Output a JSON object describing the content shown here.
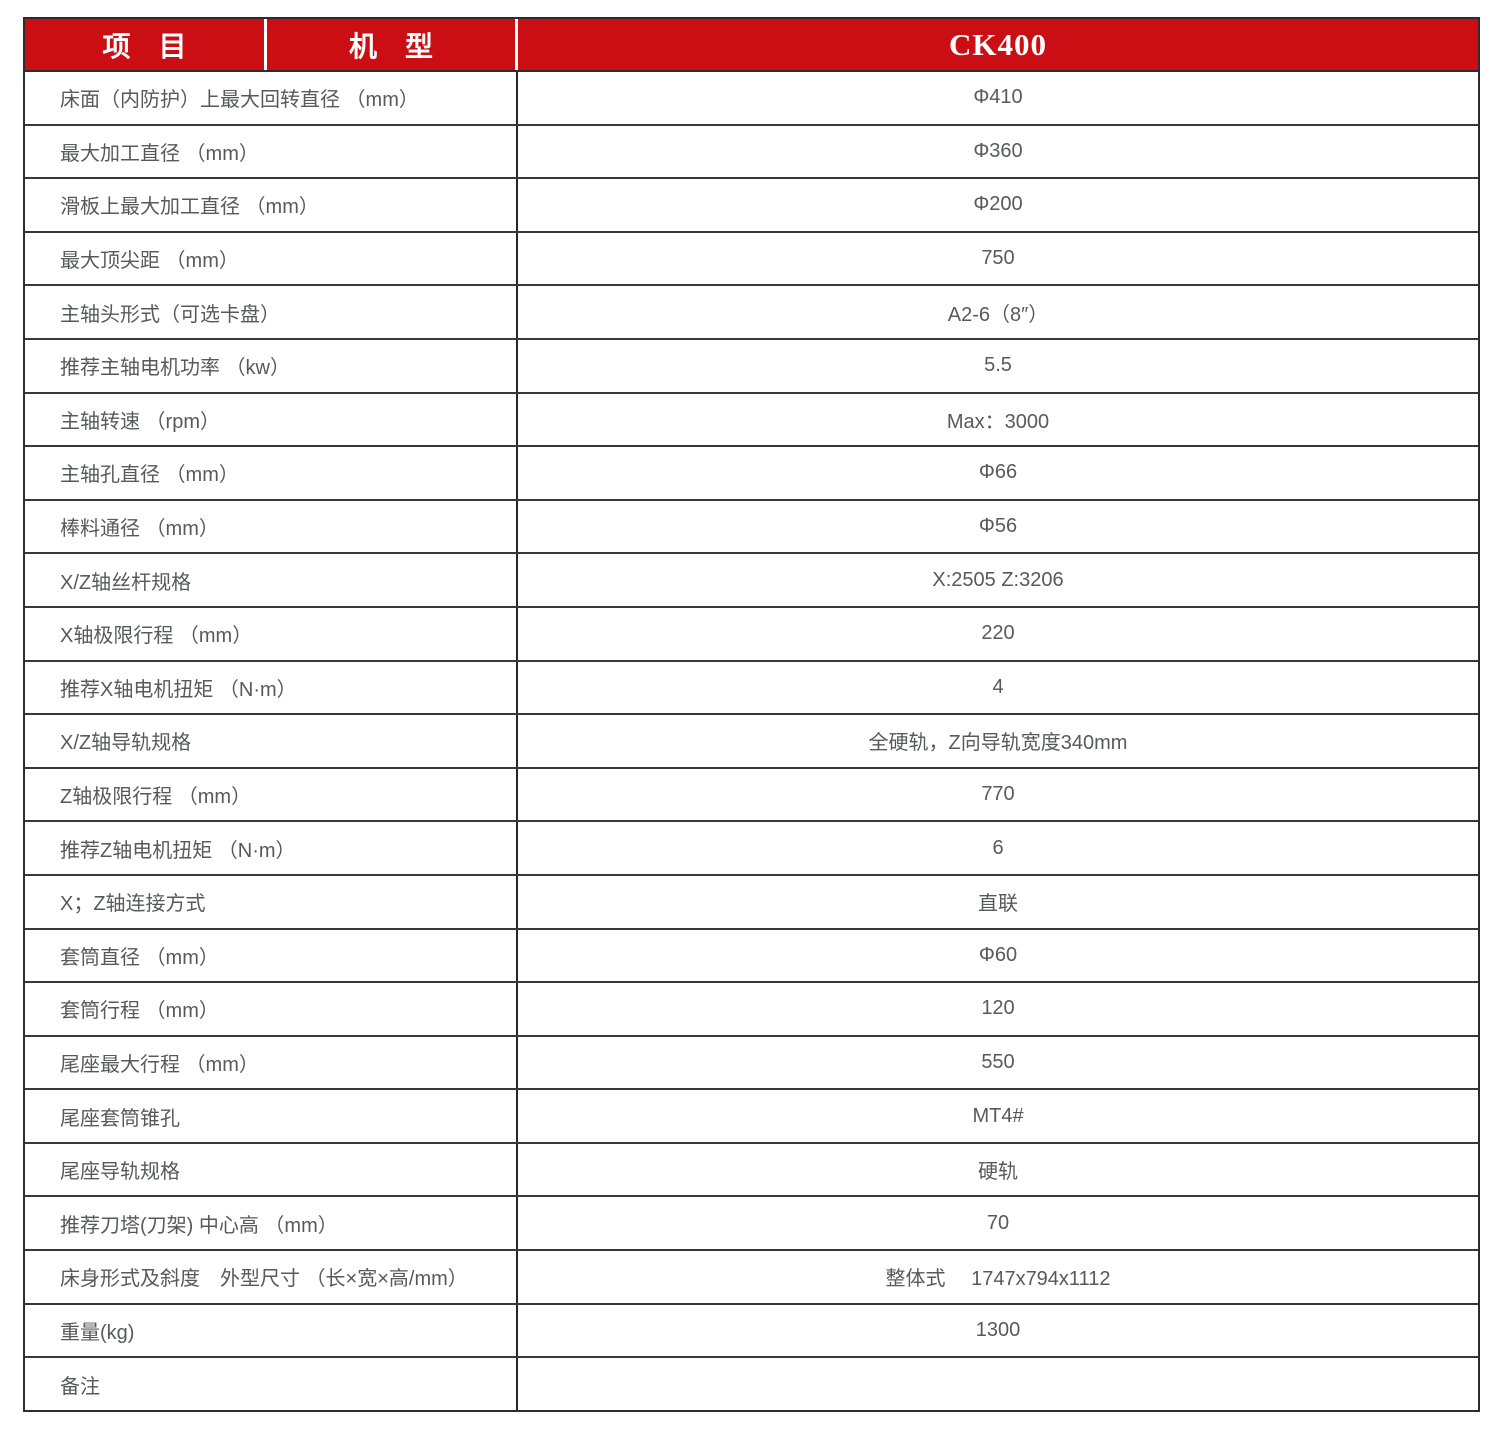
{
  "colors": {
    "header_red": "#cb0e13",
    "header_text": "#ffffff",
    "body_text": "#58595b",
    "grid_line": "#383838"
  },
  "header": {
    "col_item": "项　目",
    "col_model": "机　型",
    "col_value": "CK400"
  },
  "rows": [
    {
      "label": "床面（内防护）上最大回转直径 （mm）",
      "value": "Φ410"
    },
    {
      "label": "最大加工直径 （mm）",
      "value": "Φ360"
    },
    {
      "label": "滑板上最大加工直径 （mm）",
      "value": "Φ200"
    },
    {
      "label": "最大顶尖距 （mm）",
      "value": "750"
    },
    {
      "label": "主轴头形式（可选卡盘）",
      "value": "A2-6（8″）"
    },
    {
      "label": "推荐主轴电机功率 （kw）",
      "value": "5.5"
    },
    {
      "label": "主轴转速 （rpm）",
      "value": "Max：3000"
    },
    {
      "label": "主轴孔直径 （mm）",
      "value": "Φ66"
    },
    {
      "label": "棒料通径 （mm）",
      "value": "Φ56"
    },
    {
      "label": "X/Z轴丝杆规格",
      "value": "X:2505 Z:3206"
    },
    {
      "label": "X轴极限行程 （mm）",
      "value": "220"
    },
    {
      "label": "推荐X轴电机扭矩 （N·m）",
      "value": "4"
    },
    {
      "label": "X/Z轴导轨规格",
      "value": "全硬轨，Z向导轨宽度340mm"
    },
    {
      "label": "Z轴极限行程 （mm）",
      "value": "770"
    },
    {
      "label": "推荐Z轴电机扭矩 （N·m）",
      "value": "6"
    },
    {
      "label": "X；Z轴连接方式",
      "value": "直联"
    },
    {
      "label": "套筒直径 （mm）",
      "value": "Φ60"
    },
    {
      "label": "套筒行程 （mm）",
      "value": "120"
    },
    {
      "label": "尾座最大行程 （mm）",
      "value": "550"
    },
    {
      "label": "尾座套筒锥孔",
      "value": "MT4#"
    },
    {
      "label": "尾座导轨规格",
      "value": "硬轨"
    },
    {
      "label": "推荐刀塔(刀架) 中心高 （mm）",
      "value": "70"
    },
    {
      "label": "床身形式及斜度　外型尺寸 （长×宽×高/mm）",
      "value": "整体式　 1747x794x1112"
    },
    {
      "label": "重量(kg)",
      "value": "1300"
    },
    {
      "label": "备注",
      "value": ""
    }
  ]
}
